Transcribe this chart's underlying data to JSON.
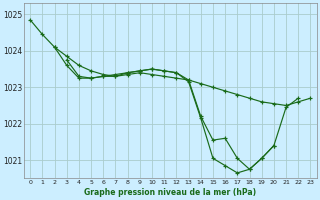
{
  "background_color": "#cceeff",
  "grid_color": "#aacccc",
  "line_color": "#1a6b1a",
  "xlabel": "Graphe pression niveau de la mer (hPa)",
  "ylim": [
    1020.5,
    1025.3
  ],
  "xlim": [
    -0.5,
    23.5
  ],
  "yticks": [
    1021,
    1022,
    1023,
    1024,
    1025
  ],
  "xticks": [
    0,
    1,
    2,
    3,
    4,
    5,
    6,
    7,
    8,
    9,
    10,
    11,
    12,
    13,
    14,
    15,
    16,
    17,
    18,
    19,
    20,
    21,
    22,
    23
  ],
  "series": [
    {
      "x": [
        0,
        1,
        2,
        3,
        4,
        5,
        6,
        7,
        8,
        9,
        10,
        11,
        12,
        13,
        14,
        15,
        16,
        17,
        18,
        19,
        20,
        21,
        22,
        23
      ],
      "y": [
        1024.85,
        1024.45,
        1024.1,
        1023.85,
        1023.6,
        1023.45,
        1023.35,
        1023.3,
        1023.35,
        1023.4,
        1023.35,
        1023.3,
        1023.25,
        1023.2,
        1023.1,
        1023.0,
        1022.9,
        1022.8,
        1022.7,
        1022.6,
        1022.55,
        1022.5,
        1022.6,
        1022.7
      ]
    },
    {
      "x": [
        2,
        3,
        4,
        5,
        6,
        7,
        8,
        9,
        10,
        11,
        12,
        13,
        14,
        15,
        16,
        17,
        18,
        19,
        20,
        21,
        22
      ],
      "y": [
        1024.1,
        1023.6,
        1023.25,
        1023.25,
        1023.3,
        1023.35,
        1023.4,
        1023.45,
        1023.5,
        1023.45,
        1023.4,
        1023.2,
        1022.2,
        1021.55,
        1021.6,
        1021.05,
        1020.75,
        1021.05,
        1021.4,
        1022.45,
        1022.7
      ]
    },
    {
      "x": [
        3,
        4,
        5,
        6,
        7,
        8,
        9,
        10,
        11,
        12,
        13,
        14,
        15,
        16,
        17,
        18,
        19,
        20
      ],
      "y": [
        1023.75,
        1023.3,
        1023.25,
        1023.3,
        1023.3,
        1023.4,
        1023.45,
        1023.5,
        1023.45,
        1023.4,
        1023.15,
        1022.15,
        1021.05,
        1020.85,
        1020.65,
        1020.75,
        1021.05,
        1021.4
      ]
    }
  ]
}
